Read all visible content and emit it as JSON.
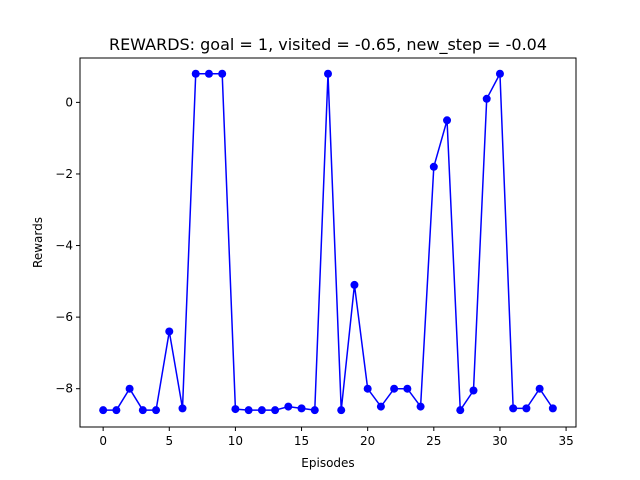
{
  "chart_data": {
    "type": "line",
    "title": "REWARDS: goal = 1, visited = -0.65, new_step = -0.04",
    "xlabel": "Episodes",
    "ylabel": "Rewards",
    "xlim": [
      -1.75,
      35.75
    ],
    "ylim": [
      -9.07,
      1.24
    ],
    "xticks": [
      0,
      5,
      10,
      15,
      20,
      25,
      30,
      35
    ],
    "yticks": [
      0,
      -2,
      -4,
      -6,
      -8
    ],
    "ytick_labels": [
      "0",
      "−2",
      "−4",
      "−6",
      "−8"
    ],
    "grid": false,
    "legend": "none",
    "series": [
      {
        "color": "#0000ff",
        "marker": "circle",
        "x": [
          0,
          1,
          2,
          3,
          4,
          5,
          6,
          7,
          8,
          9,
          10,
          11,
          12,
          13,
          14,
          15,
          16,
          17,
          18,
          19,
          20,
          21,
          22,
          23,
          24,
          25,
          26,
          27,
          28,
          29,
          30,
          31,
          32,
          33,
          34
        ],
        "values": [
          -8.6,
          -8.6,
          -8.0,
          -8.6,
          -8.6,
          -6.4,
          -8.55,
          0.8,
          0.8,
          0.8,
          -8.57,
          -8.6,
          -8.6,
          -8.6,
          -8.5,
          -8.55,
          -8.6,
          0.8,
          -8.6,
          -5.1,
          -8.0,
          -8.5,
          -8.0,
          -8.0,
          -8.5,
          -1.8,
          -0.5,
          -8.6,
          -8.05,
          0.1,
          0.8,
          -8.55,
          -8.55,
          -8.0,
          -8.55
        ]
      }
    ]
  }
}
